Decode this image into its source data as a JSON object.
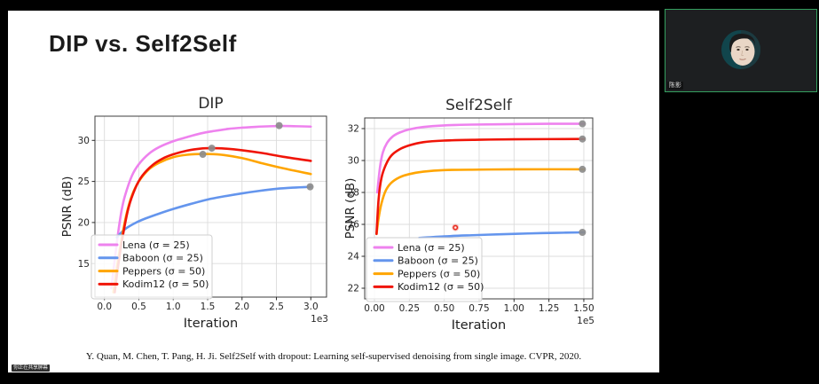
{
  "slide": {
    "title": "DIP vs. Self2Self",
    "citation": "Y. Quan, M. Chen, T. Pang, H. Ji. Self2Self with dropout: Learning self-supervised denoising from single image. CVPR, 2020."
  },
  "share_badge": {
    "label": "你正在共享屏幕"
  },
  "webcam": {
    "name_label": "陈影",
    "border_color": "#35a05f"
  },
  "colors": {
    "lena": "#ee82ee",
    "baboon": "#6495ed",
    "peppers": "#ffa500",
    "kodim12": "#f01508",
    "peak_marker": "#8c8c8c",
    "laser_pointer": "#e8271a"
  },
  "chart_data": [
    {
      "type": "line",
      "title": "DIP",
      "xlabel": "Iteration",
      "ylabel": "PSNR (dB)",
      "x_offset_label": "1e3",
      "xlim": [
        -0.12,
        3.23
      ],
      "ylim": [
        10.9,
        33.1
      ],
      "grid": true,
      "legend_position": "lower left",
      "xticks": [
        0.0,
        0.5,
        1.0,
        1.5,
        2.0,
        2.5,
        3.0
      ],
      "xtick_labels": [
        "0.0",
        "0.5",
        "1.0",
        "1.5",
        "2.0",
        "2.5",
        "3.0"
      ],
      "yticks": [
        15,
        20,
        25,
        30
      ],
      "ytick_labels": [
        "15",
        "20",
        "25",
        "30"
      ],
      "series": [
        {
          "name": "Lena (σ = 25)",
          "color": "#ee82ee",
          "x": [
            0.1,
            0.15,
            0.2,
            0.25,
            0.3,
            0.4,
            0.5,
            0.65,
            0.8,
            1.0,
            1.2,
            1.4,
            1.6,
            1.8,
            2.0,
            2.2,
            2.4,
            2.6,
            2.8,
            3.0
          ],
          "y": [
            12.0,
            15.5,
            18.8,
            21.5,
            23.3,
            25.7,
            27.1,
            28.4,
            29.2,
            29.9,
            30.4,
            30.85,
            31.15,
            31.4,
            31.55,
            31.65,
            31.72,
            31.75,
            31.72,
            31.68
          ]
        },
        {
          "name": "Baboon (σ = 25)",
          "color": "#6495ed",
          "x": [
            0.18,
            0.3,
            0.45,
            0.6,
            0.8,
            1.0,
            1.25,
            1.5,
            1.75,
            2.0,
            2.25,
            2.5,
            2.75,
            3.0
          ],
          "y": [
            18.2,
            19.2,
            19.95,
            20.5,
            21.1,
            21.65,
            22.25,
            22.8,
            23.2,
            23.55,
            23.85,
            24.1,
            24.25,
            24.35
          ]
        },
        {
          "name": "Peppers (σ = 50)",
          "color": "#ffa500",
          "x": [
            0.13,
            0.18,
            0.25,
            0.32,
            0.4,
            0.5,
            0.65,
            0.8,
            1.0,
            1.2,
            1.45,
            1.7,
            2.0,
            2.3,
            2.6,
            3.0
          ],
          "y": [
            11.5,
            14.5,
            18.0,
            21.0,
            23.3,
            25.0,
            26.5,
            27.3,
            27.95,
            28.25,
            28.35,
            28.25,
            27.85,
            27.2,
            26.6,
            25.9
          ]
        },
        {
          "name": "Kodim12 (σ = 50)",
          "color": "#f01508",
          "x": [
            0.15,
            0.2,
            0.27,
            0.35,
            0.45,
            0.55,
            0.7,
            0.85,
            1.0,
            1.2,
            1.4,
            1.55,
            1.75,
            2.0,
            2.3,
            2.6,
            3.0
          ],
          "y": [
            11.5,
            14.8,
            18.5,
            21.8,
            24.2,
            25.7,
            27.0,
            27.8,
            28.3,
            28.75,
            29.0,
            29.05,
            29.0,
            28.8,
            28.45,
            28.0,
            27.5
          ]
        }
      ],
      "peak_markers": [
        {
          "x": 2.54,
          "y": 31.8
        },
        {
          "x": 2.99,
          "y": 24.35
        },
        {
          "x": 1.43,
          "y": 28.3
        },
        {
          "x": 1.56,
          "y": 29.05
        }
      ],
      "marker_color": "#8c8c8c"
    },
    {
      "type": "line",
      "title": "Self2Self",
      "xlabel": "Iteration",
      "ylabel": "PSNR (dB)",
      "x_offset_label": "1e5",
      "xlim": [
        -0.07,
        1.56
      ],
      "ylim": [
        21.3,
        32.7
      ],
      "grid": true,
      "legend_position": "lower left",
      "xticks": [
        0.0,
        0.25,
        0.5,
        0.75,
        1.0,
        1.25,
        1.5
      ],
      "xtick_labels": [
        "0.00",
        "0.25",
        "0.50",
        "0.75",
        "1.00",
        "1.25",
        "1.50"
      ],
      "yticks": [
        22,
        24,
        26,
        28,
        30,
        32
      ],
      "ytick_labels": [
        "22",
        "24",
        "26",
        "28",
        "30",
        "32"
      ],
      "series": [
        {
          "name": "Lena (σ = 25)",
          "color": "#ee82ee",
          "x": [
            0.02,
            0.04,
            0.06,
            0.09,
            0.13,
            0.18,
            0.25,
            0.35,
            0.5,
            0.7,
            1.0,
            1.25,
            1.5
          ],
          "y": [
            28.0,
            29.6,
            30.5,
            31.1,
            31.5,
            31.75,
            31.95,
            32.1,
            32.2,
            32.25,
            32.28,
            32.3,
            32.3
          ]
        },
        {
          "name": "Baboon (σ = 25)",
          "color": "#6495ed",
          "x": [
            0.32,
            0.5,
            0.7,
            0.9,
            1.1,
            1.3,
            1.5
          ],
          "y": [
            25.15,
            25.25,
            25.32,
            25.38,
            25.43,
            25.47,
            25.5
          ]
        },
        {
          "name": "Peppers (σ = 50)",
          "color": "#ffa500",
          "x": [
            0.015,
            0.03,
            0.05,
            0.08,
            0.12,
            0.18,
            0.25,
            0.35,
            0.5,
            0.75,
            1.0,
            1.5
          ],
          "y": [
            25.4,
            26.4,
            27.3,
            28.1,
            28.6,
            28.95,
            29.15,
            29.3,
            29.4,
            29.43,
            29.45,
            29.45
          ]
        },
        {
          "name": "Kodim12 (σ = 50)",
          "color": "#f01508",
          "x": [
            0.015,
            0.03,
            0.05,
            0.08,
            0.12,
            0.18,
            0.25,
            0.35,
            0.5,
            0.75,
            1.0,
            1.5
          ],
          "y": [
            25.4,
            27.6,
            28.9,
            29.7,
            30.3,
            30.7,
            30.95,
            31.15,
            31.25,
            31.3,
            31.33,
            31.35
          ]
        }
      ],
      "peak_markers": [
        {
          "x": 1.49,
          "y": 32.3
        },
        {
          "x": 1.49,
          "y": 31.35
        },
        {
          "x": 1.49,
          "y": 29.45
        },
        {
          "x": 1.49,
          "y": 25.5
        }
      ],
      "marker_color": "#8c8c8c",
      "pointer": {
        "x": 0.58,
        "y": 25.8,
        "color": "#e8271a"
      }
    }
  ]
}
